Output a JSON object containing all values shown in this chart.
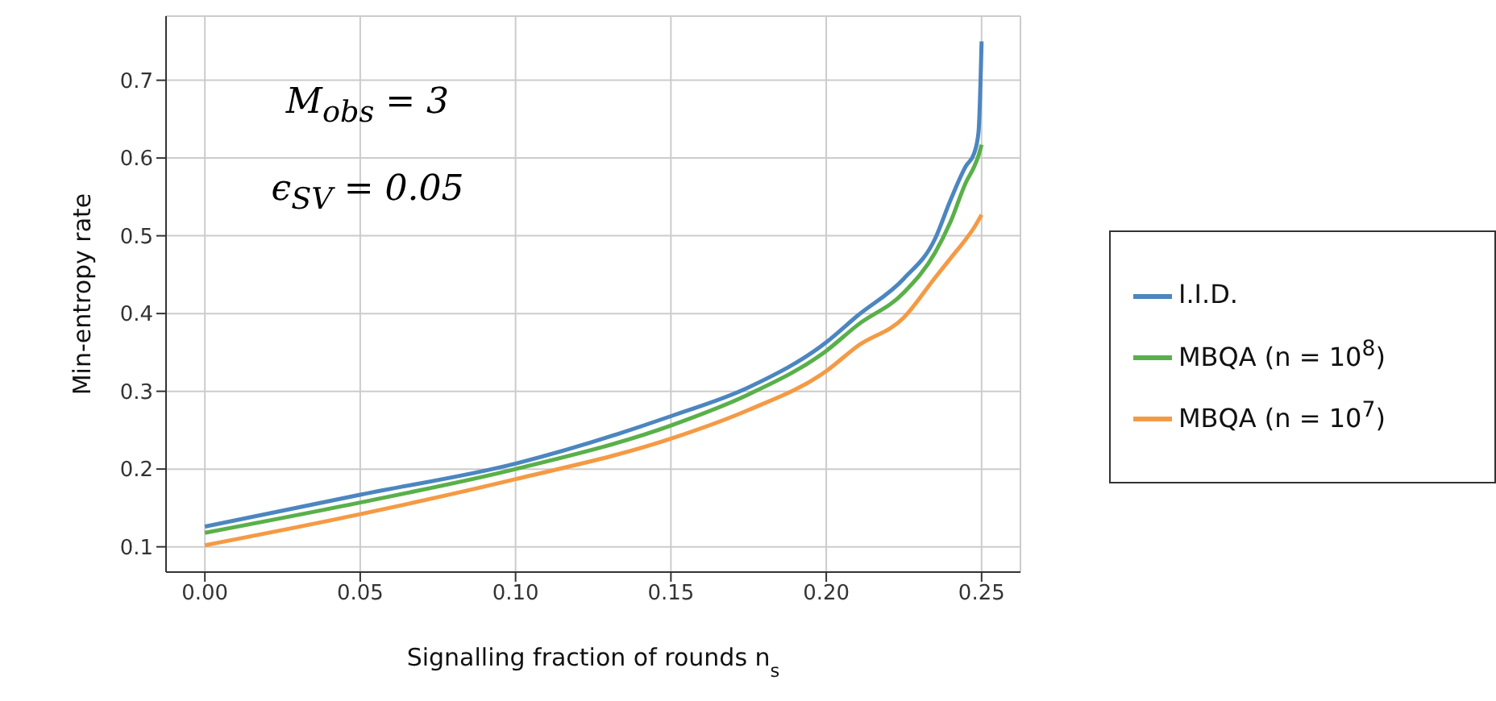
{
  "chart_data": {
    "type": "line",
    "xlabel": "Signalling fraction of rounds n$_{s}$",
    "ylabel": "Min-entropy rate",
    "annotations": [
      "M$_{obs}$ = 3",
      "ϵ$_{SV}$ = 0.05"
    ],
    "x": [
      0,
      0.05,
      0.1,
      0.15,
      0.175,
      0.2,
      0.21,
      0.225,
      0.235,
      0.24,
      0.245,
      0.2475,
      0.249,
      0.25
    ],
    "series": [
      {
        "name": "I.I.D.",
        "color": "#4c86c0",
        "values": [
          0.126,
          0.167,
          0.207,
          0.268,
          0.305,
          0.363,
          0.397,
          0.445,
          0.496,
          0.546,
          0.59,
          0.605,
          0.633,
          0.75
        ]
      },
      {
        "name": "MBQA (n = 10$^{8}$)",
        "color": "#59b04a",
        "values": [
          0.118,
          0.157,
          0.2,
          0.256,
          0.296,
          0.352,
          0.385,
          0.427,
          0.478,
          0.518,
          0.569,
          0.588,
          0.603,
          0.617
        ]
      },
      {
        "name": "MBQA (n = 10$^{7}$)",
        "color": "#f59a44",
        "values": [
          0.102,
          0.142,
          0.187,
          0.239,
          0.276,
          0.326,
          0.358,
          0.395,
          0.446,
          0.471,
          0.496,
          0.51,
          0.52,
          0.527
        ]
      }
    ],
    "xlim": [
      -0.0125,
      0.2625
    ],
    "xticks": [
      {
        "value": 0,
        "label": "0.00"
      },
      {
        "value": 0.05,
        "label": "0.05"
      },
      {
        "value": 0.1,
        "label": "0.10"
      },
      {
        "value": 0.15,
        "label": "0.15"
      },
      {
        "value": 0.2,
        "label": "0.20"
      },
      {
        "value": 0.25,
        "label": "0.25"
      }
    ],
    "ylim": [
      0.0675,
      0.7825
    ],
    "yticks": [
      0.1,
      0.2,
      0.3,
      0.4,
      0.5,
      0.6,
      0.7
    ],
    "grid": true,
    "legend": "right",
    "marker": "none",
    "line_style": "solid"
  }
}
